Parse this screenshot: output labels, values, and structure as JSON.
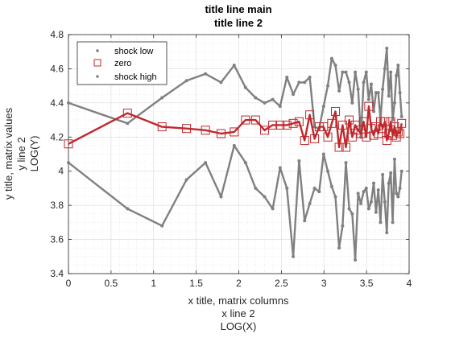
{
  "chart_data": {
    "type": "line",
    "title": [
      "title line main",
      "title line 2"
    ],
    "xlabel": [
      "x title, matrix columns",
      "x line 2",
      "LOG(X)"
    ],
    "ylabel": [
      "y title, matrix values",
      "y line 2",
      "LOG(Y)"
    ],
    "xlim": [
      0,
      4
    ],
    "ylim": [
      3.4,
      4.8
    ],
    "xticks": [
      "0",
      "0.5",
      "1",
      "1.5",
      "2",
      "2.5",
      "3",
      "3.5",
      "4"
    ],
    "yticks": [
      "3.4",
      "3.6",
      "3.8",
      "4",
      "4.2",
      "4.4",
      "4.6",
      "4.8"
    ],
    "grid": "on, with minor grid",
    "legend_position": "top-left",
    "series": [
      {
        "name": "shock low",
        "color": "#808080",
        "marker": "dot",
        "x": [
          0,
          0.693,
          1.099,
          1.386,
          1.609,
          1.792,
          1.946,
          2.079,
          2.197,
          2.303,
          2.398,
          2.485,
          2.565,
          2.639,
          2.708,
          2.773,
          2.833,
          2.89,
          2.944,
          2.996,
          3.045,
          3.091,
          3.135,
          3.178,
          3.219,
          3.258,
          3.296,
          3.332,
          3.367,
          3.401,
          3.434,
          3.466,
          3.497,
          3.526,
          3.555,
          3.584,
          3.611,
          3.638,
          3.664,
          3.689,
          3.714,
          3.738,
          3.761,
          3.784,
          3.807,
          3.829,
          3.85,
          3.871,
          3.892,
          3.912
        ],
        "y": [
          4.05,
          3.78,
          3.68,
          3.95,
          4.05,
          3.85,
          4.15,
          4.05,
          3.9,
          3.85,
          3.78,
          4.02,
          3.9,
          3.5,
          4.06,
          3.71,
          3.81,
          3.9,
          3.88,
          4.1,
          4.0,
          3.91,
          3.85,
          3.55,
          3.68,
          4.05,
          3.78,
          3.75,
          3.48,
          3.87,
          3.81,
          3.88,
          3.9,
          3.78,
          3.82,
          3.93,
          3.76,
          3.89,
          3.7,
          3.98,
          3.82,
          3.64,
          3.93,
          3.99,
          3.7,
          4.07,
          3.87,
          3.85,
          3.9,
          4.0
        ]
      },
      {
        "name": "zero",
        "color": "#c0282d",
        "marker": "square",
        "x": [
          0,
          0.693,
          1.099,
          1.386,
          1.609,
          1.792,
          1.946,
          2.079,
          2.197,
          2.303,
          2.398,
          2.485,
          2.565,
          2.639,
          2.708,
          2.773,
          2.833,
          2.89,
          2.944,
          2.996,
          3.045,
          3.091,
          3.135,
          3.178,
          3.219,
          3.258,
          3.296,
          3.332,
          3.367,
          3.401,
          3.434,
          3.466,
          3.497,
          3.526,
          3.555,
          3.584,
          3.611,
          3.638,
          3.664,
          3.689,
          3.714,
          3.738,
          3.761,
          3.784,
          3.807,
          3.829,
          3.85,
          3.871,
          3.892,
          3.912
        ],
        "y": [
          4.16,
          4.34,
          4.26,
          4.25,
          4.24,
          4.22,
          4.23,
          4.3,
          4.3,
          4.24,
          4.27,
          4.27,
          4.27,
          4.28,
          4.29,
          4.18,
          4.33,
          4.19,
          4.26,
          4.26,
          4.2,
          4.28,
          4.35,
          4.14,
          4.27,
          4.14,
          4.3,
          4.2,
          4.27,
          4.24,
          4.22,
          4.29,
          4.2,
          4.38,
          4.25,
          4.21,
          4.26,
          4.22,
          4.29,
          4.25,
          4.29,
          4.18,
          4.22,
          4.29,
          4.21,
          4.26,
          4.2,
          4.23,
          4.22,
          4.28
        ]
      },
      {
        "name": "shock high",
        "color": "#808080",
        "marker": "dot",
        "x": [
          0,
          0.693,
          1.099,
          1.386,
          1.609,
          1.792,
          1.946,
          2.079,
          2.197,
          2.303,
          2.398,
          2.485,
          2.565,
          2.639,
          2.708,
          2.773,
          2.833,
          2.89,
          2.944,
          2.996,
          3.045,
          3.091,
          3.135,
          3.178,
          3.219,
          3.258,
          3.296,
          3.332,
          3.367,
          3.401,
          3.434,
          3.466,
          3.497,
          3.526,
          3.555,
          3.584,
          3.611,
          3.638,
          3.664,
          3.689,
          3.714,
          3.738,
          3.761,
          3.784,
          3.807,
          3.829,
          3.85,
          3.871,
          3.892,
          3.912
        ],
        "y": [
          4.4,
          4.28,
          4.43,
          4.53,
          4.57,
          4.52,
          4.62,
          4.49,
          4.43,
          4.4,
          4.42,
          4.38,
          4.55,
          4.45,
          4.52,
          4.52,
          4.55,
          4.26,
          4.25,
          4.38,
          4.5,
          4.66,
          4.62,
          4.47,
          4.58,
          4.58,
          4.52,
          4.4,
          4.58,
          4.48,
          4.2,
          4.52,
          4.58,
          4.42,
          4.51,
          4.35,
          4.46,
          4.46,
          4.3,
          4.48,
          4.6,
          4.72,
          4.44,
          4.58,
          4.3,
          4.4,
          4.56,
          4.62,
          4.46,
          4.32
        ]
      }
    ]
  }
}
